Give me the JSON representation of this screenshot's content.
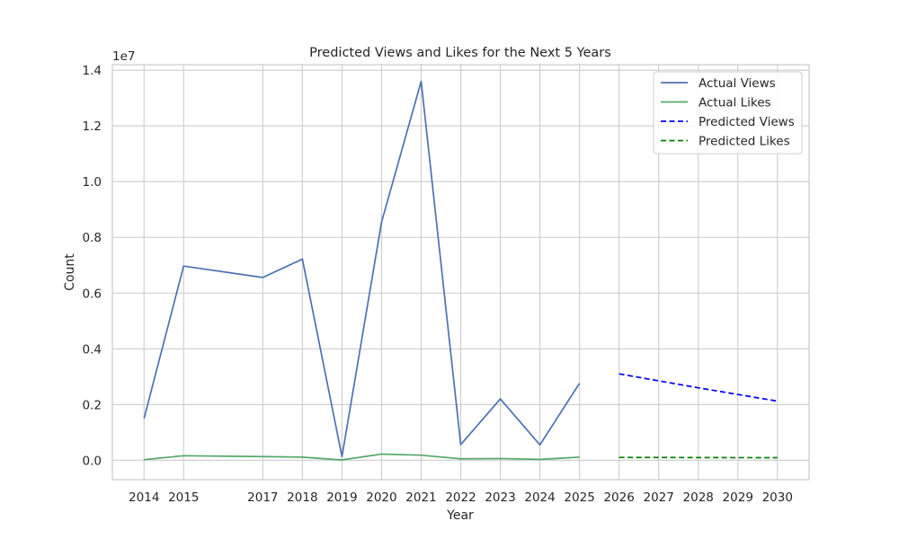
{
  "chart_data": {
    "type": "line",
    "title": "Predicted Views and Likes for the Next 5 Years",
    "xlabel": "Year",
    "ylabel": "Count",
    "y_offset_label": "1e7",
    "ylim": [
      -0.07,
      1.42
    ],
    "y_unit_multiplier": 10000000,
    "xlim": [
      2013.2,
      2030.8
    ],
    "x_ticks": [
      2014,
      2015,
      2017,
      2018,
      2019,
      2020,
      2021,
      2022,
      2023,
      2024,
      2025,
      2026,
      2027,
      2028,
      2029,
      2030
    ],
    "y_ticks": [
      0.0,
      0.2,
      0.4,
      0.6,
      0.8,
      1.0,
      1.2,
      1.4
    ],
    "y_tick_labels": [
      "0.0",
      "0.2",
      "0.4",
      "0.6",
      "0.8",
      "1.0",
      "1.2",
      "1.4"
    ],
    "grid": true,
    "legend_position": "top-right",
    "series": [
      {
        "name": "Actual Views",
        "color": "#4c72b0",
        "style": "solid",
        "x": [
          2014,
          2015,
          2017,
          2018,
          2019,
          2020,
          2021,
          2022,
          2023,
          2024,
          2025
        ],
        "y": [
          0.15,
          0.697,
          0.656,
          0.722,
          0.013,
          0.855,
          1.36,
          0.056,
          0.22,
          0.055,
          0.276
        ]
      },
      {
        "name": "Actual Likes",
        "color": "#55a868",
        "style": "solid",
        "x": [
          2014,
          2015,
          2017,
          2018,
          2019,
          2020,
          2021,
          2022,
          2023,
          2024,
          2025
        ],
        "y": [
          0.002,
          0.016,
          0.013,
          0.011,
          0.001,
          0.022,
          0.018,
          0.005,
          0.006,
          0.003,
          0.011
        ]
      },
      {
        "name": "Predicted Views",
        "color": "#0000ff",
        "style": "dashed",
        "x": [
          2026,
          2027,
          2028,
          2029,
          2030
        ],
        "y": [
          0.31,
          0.285,
          0.26,
          0.236,
          0.212
        ]
      },
      {
        "name": "Predicted Likes",
        "color": "#008000",
        "style": "dashed",
        "x": [
          2026,
          2027,
          2028,
          2029,
          2030
        ],
        "y": [
          0.01,
          0.0098,
          0.0095,
          0.0092,
          0.009
        ]
      }
    ]
  }
}
